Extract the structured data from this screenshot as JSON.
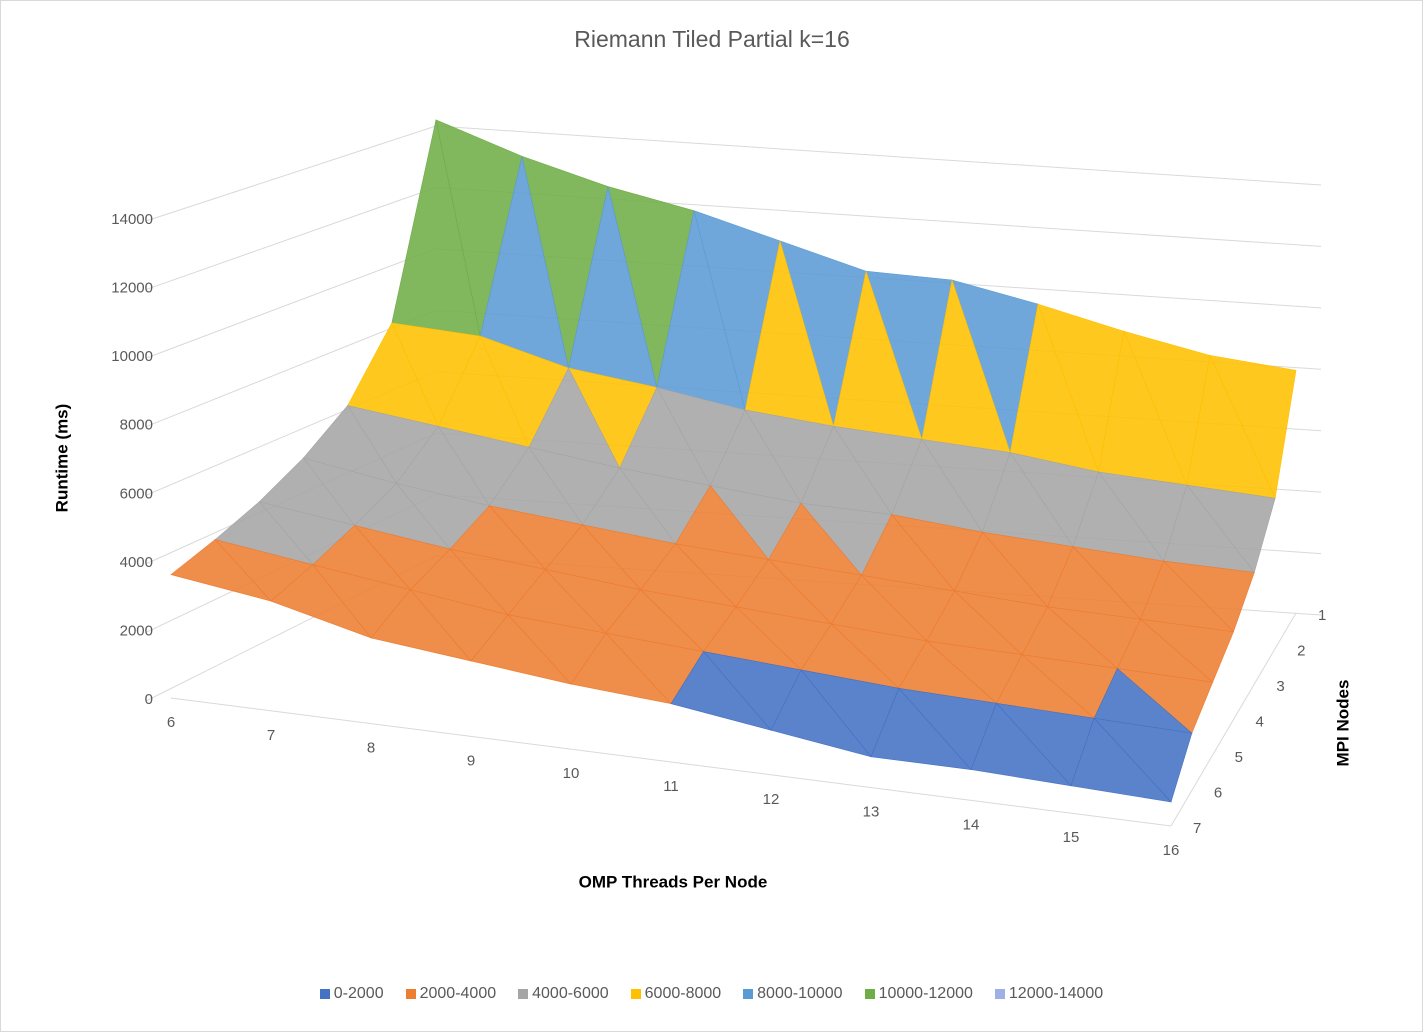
{
  "chart_data": {
    "type": "surface",
    "title": "Riemann Tiled Partial k=16",
    "x_label": "OMP Threads Per Node",
    "y_label": "Runtime (ms)",
    "z_label": "MPI Nodes",
    "categories": [
      6,
      7,
      8,
      9,
      10,
      11,
      12,
      13,
      14,
      15,
      16
    ],
    "depth_categories": [
      1,
      2,
      3,
      4,
      5,
      6,
      7
    ],
    "values": [
      [
        14200,
        13200,
        12400,
        11800,
        11000,
        10200,
        10100,
        9500,
        8800,
        8200,
        7900
      ],
      [
        8200,
        8000,
        7200,
        6800,
        6300,
        6000,
        5800,
        5600,
        5200,
        5000,
        4800
      ],
      [
        6200,
        5800,
        5400,
        5000,
        4700,
        4400,
        4300,
        4000,
        3800,
        3600,
        3500
      ],
      [
        5200,
        4700,
        4300,
        4000,
        3700,
        3500,
        3300,
        3100,
        2900,
        2800,
        2700
      ],
      [
        4500,
        4100,
        3700,
        3400,
        3100,
        2900,
        2700,
        2500,
        2400,
        2300,
        2200
      ],
      [
        4000,
        3600,
        3200,
        2800,
        2600,
        2400,
        2200,
        2000,
        1900,
        1800,
        1700
      ],
      [
        3600,
        3200,
        2500,
        2200,
        1900,
        1700,
        1300,
        900,
        900,
        800,
        700
      ]
    ],
    "ylim": [
      0,
      14000
    ],
    "yticks": [
      0,
      2000,
      4000,
      6000,
      8000,
      10000,
      12000,
      14000
    ],
    "grid": true,
    "legend": "bottom",
    "series": [
      {
        "name": "0-2000",
        "color": "#4472c4"
      },
      {
        "name": "2000-4000",
        "color": "#ed7d31"
      },
      {
        "name": "4000-6000",
        "color": "#a5a5a5"
      },
      {
        "name": "6000-8000",
        "color": "#ffc000"
      },
      {
        "name": "8000-10000",
        "color": "#5b9bd5"
      },
      {
        "name": "10000-12000",
        "color": "#70ad47"
      },
      {
        "name": "12000-14000",
        "color": "#9db0e8"
      }
    ]
  }
}
